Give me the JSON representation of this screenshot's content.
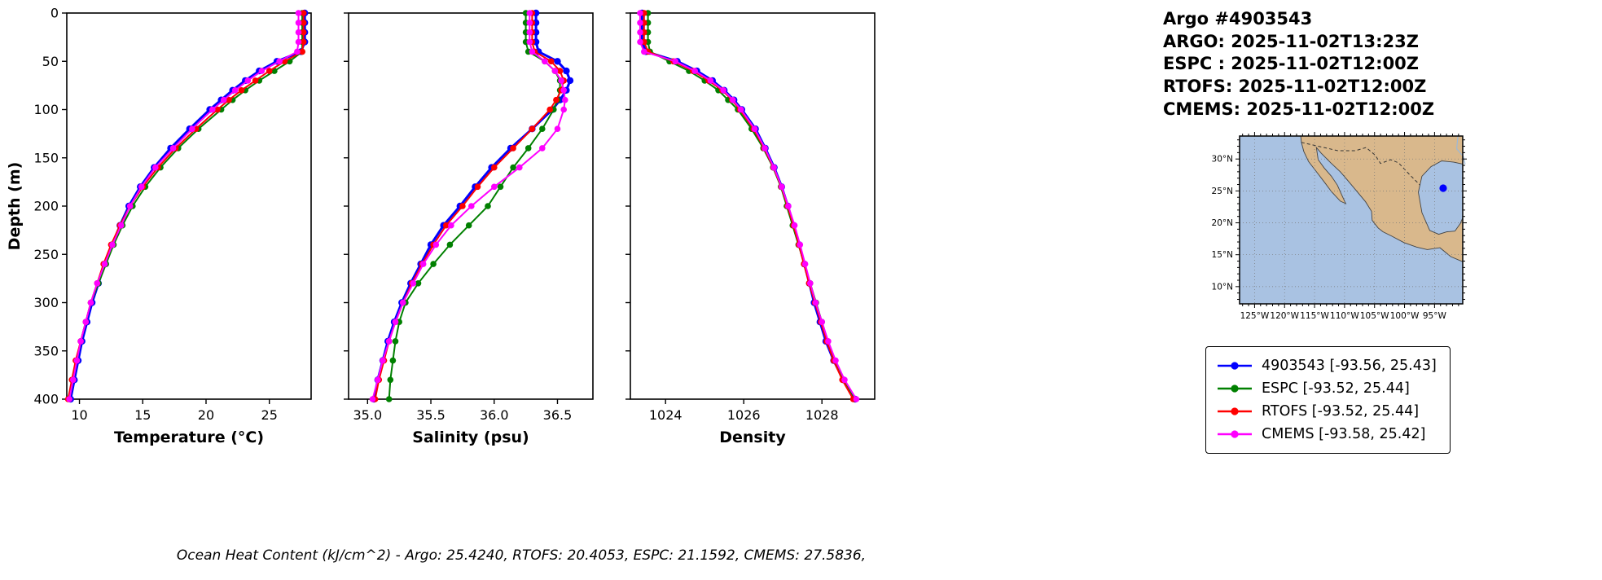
{
  "header": {
    "title": "Argo #4903543",
    "lines": [
      "ARGO: 2025-11-02T13:23Z",
      "ESPC : 2025-11-02T12:00Z",
      "RTOFS: 2025-11-02T12:00Z",
      "CMEMS: 2025-11-02T12:00Z"
    ]
  },
  "footer": {
    "caption": "Ocean Heat Content (kJ/cm^2) - Argo: 25.4240,  RTOFS: 20.4053,  ESPC: 21.1592,  CMEMS: 27.5836,"
  },
  "legend": {
    "items": [
      {
        "label": "4903543 [-93.56, 25.43]",
        "color": "#0000ff"
      },
      {
        "label": "ESPC [-93.52, 25.44]",
        "color": "#008000"
      },
      {
        "label": "RTOFS [-93.52, 25.44]",
        "color": "#ff0000"
      },
      {
        "label": "CMEMS [-93.58, 25.42]",
        "color": "#ff00ff"
      }
    ]
  },
  "map": {
    "lon_range": [
      -127.5,
      -90.3
    ],
    "lat_range": [
      7.3,
      33.6
    ],
    "lon_ticks": [
      {
        "v": -125,
        "label": "125°W"
      },
      {
        "v": -120,
        "label": "120°W"
      },
      {
        "v": -115,
        "label": "115°W"
      },
      {
        "v": -110,
        "label": "110°W"
      },
      {
        "v": -105,
        "label": "105°W"
      },
      {
        "v": -100,
        "label": "100°W"
      },
      {
        "v": -95,
        "label": "95°W"
      }
    ],
    "lat_ticks": [
      {
        "v": 30,
        "label": "30°N"
      },
      {
        "v": 25,
        "label": "25°N"
      },
      {
        "v": 20,
        "label": "20°N"
      },
      {
        "v": 15,
        "label": "15°N"
      },
      {
        "v": 10,
        "label": "10°N"
      }
    ],
    "float_lon": -93.56,
    "float_lat": 25.43,
    "marker_color": "#0000ff",
    "ocean_color": "#a9c2e2",
    "land_color": "#d9b88c"
  },
  "chart_data": [
    {
      "type": "line",
      "xlabel": "Temperature (°C)",
      "ylabel": "Depth (m)",
      "xlim": [
        9,
        28.3
      ],
      "ylim": [
        0,
        400
      ],
      "xticks": [
        10,
        15,
        20,
        25
      ],
      "xtick_labels": [
        "10",
        "15",
        "20",
        "25"
      ],
      "yticks": [
        0,
        50,
        100,
        150,
        200,
        250,
        300,
        350,
        400
      ],
      "depths": [
        0,
        10,
        20,
        30,
        40,
        50,
        60,
        70,
        80,
        90,
        100,
        120,
        140,
        160,
        180,
        200,
        220,
        240,
        260,
        280,
        300,
        320,
        340,
        360,
        380,
        400
      ],
      "series": [
        {
          "name": "4903543",
          "color": "#0000ff",
          "values": [
            27.8,
            27.8,
            27.8,
            27.8,
            27.5,
            25.6,
            24.2,
            23.1,
            22.1,
            21.2,
            20.3,
            18.7,
            17.2,
            15.9,
            14.8,
            13.9,
            13.2,
            12.6,
            12.0,
            11.5,
            11.0,
            10.6,
            10.2,
            9.9,
            9.6,
            9.3
          ]
        },
        {
          "name": "ESPC",
          "color": "#008000",
          "values": [
            27.6,
            27.6,
            27.6,
            27.6,
            27.6,
            26.6,
            25.4,
            24.2,
            23.1,
            22.1,
            21.2,
            19.4,
            17.8,
            16.4,
            15.2,
            14.2,
            13.4,
            12.7,
            12.1,
            11.5,
            10.9,
            10.5,
            10.1,
            9.8,
            9.5,
            9.2
          ]
        },
        {
          "name": "RTOFS",
          "color": "#ff0000",
          "values": [
            27.7,
            27.7,
            27.7,
            27.7,
            27.6,
            26.2,
            25.0,
            23.9,
            22.8,
            21.8,
            20.9,
            19.2,
            17.6,
            16.2,
            15.0,
            14.0,
            13.2,
            12.5,
            11.9,
            11.4,
            10.9,
            10.5,
            10.1,
            9.7,
            9.4,
            9.1
          ]
        },
        {
          "name": "CMEMS",
          "color": "#ff00ff",
          "values": [
            27.3,
            27.3,
            27.3,
            27.3,
            27.2,
            25.8,
            24.4,
            23.3,
            22.3,
            21.4,
            20.5,
            18.9,
            17.4,
            16.0,
            14.9,
            14.0,
            13.3,
            12.6,
            12.0,
            11.4,
            10.9,
            10.5,
            10.1,
            9.8,
            9.5,
            9.2
          ]
        }
      ]
    },
    {
      "type": "line",
      "xlabel": "Salinity (psu)",
      "ylabel": "",
      "xlim": [
        34.85,
        36.78
      ],
      "ylim": [
        0,
        400
      ],
      "xticks": [
        35.0,
        35.5,
        36.0,
        36.5
      ],
      "xtick_labels": [
        "35.0",
        "35.5",
        "36.0",
        "36.5"
      ],
      "yticks": [
        0,
        50,
        100,
        150,
        200,
        250,
        300,
        350,
        400
      ],
      "depths": [
        0,
        10,
        20,
        30,
        40,
        50,
        60,
        70,
        80,
        90,
        100,
        120,
        140,
        160,
        180,
        200,
        220,
        240,
        260,
        280,
        300,
        320,
        340,
        360,
        380,
        400
      ],
      "series": [
        {
          "name": "4903543",
          "color": "#0000ff",
          "values": [
            36.33,
            36.33,
            36.33,
            36.33,
            36.35,
            36.5,
            36.57,
            36.6,
            36.57,
            36.52,
            36.46,
            36.3,
            36.13,
            35.98,
            35.85,
            35.73,
            35.6,
            35.5,
            35.42,
            35.34,
            35.27,
            35.21,
            35.16,
            35.12,
            35.08,
            35.05
          ]
        },
        {
          "name": "ESPC",
          "color": "#008000",
          "values": [
            36.25,
            36.25,
            36.25,
            36.25,
            36.27,
            36.4,
            36.48,
            36.52,
            36.52,
            36.5,
            36.47,
            36.38,
            36.27,
            36.15,
            36.05,
            35.95,
            35.8,
            35.65,
            35.52,
            35.4,
            35.3,
            35.25,
            35.22,
            35.2,
            35.18,
            35.17
          ]
        },
        {
          "name": "RTOFS",
          "color": "#ff0000",
          "values": [
            36.3,
            36.3,
            36.3,
            36.3,
            36.32,
            36.45,
            36.52,
            36.55,
            36.53,
            36.49,
            36.44,
            36.3,
            36.15,
            36.0,
            35.87,
            35.75,
            35.62,
            35.52,
            35.43,
            35.35,
            35.28,
            35.22,
            35.17,
            35.13,
            35.09,
            35.06
          ]
        },
        {
          "name": "CMEMS",
          "color": "#ff00ff",
          "values": [
            36.28,
            36.28,
            36.28,
            36.28,
            36.3,
            36.4,
            36.48,
            36.53,
            36.55,
            36.56,
            36.55,
            36.5,
            36.38,
            36.2,
            36.0,
            35.82,
            35.66,
            35.54,
            35.44,
            35.36,
            35.28,
            35.22,
            35.17,
            35.12,
            35.08,
            35.04
          ]
        }
      ]
    },
    {
      "type": "line",
      "xlabel": "Density",
      "ylabel": "",
      "xlim": [
        1023.1,
        1029.35
      ],
      "ylim": [
        0,
        400
      ],
      "xticks": [
        1024,
        1026,
        1028
      ],
      "xtick_labels": [
        "1024",
        "1026",
        "1028"
      ],
      "yticks": [
        0,
        50,
        100,
        150,
        200,
        250,
        300,
        350,
        400
      ],
      "depths": [
        0,
        10,
        20,
        30,
        40,
        50,
        60,
        70,
        80,
        90,
        100,
        120,
        140,
        160,
        180,
        200,
        220,
        240,
        260,
        280,
        300,
        320,
        340,
        360,
        380,
        400
      ],
      "series": [
        {
          "name": "4903543",
          "color": "#0000ff",
          "values": [
            1023.4,
            1023.4,
            1023.4,
            1023.4,
            1023.5,
            1024.3,
            1024.8,
            1025.2,
            1025.5,
            1025.75,
            1025.95,
            1026.3,
            1026.55,
            1026.78,
            1026.97,
            1027.13,
            1027.28,
            1027.42,
            1027.55,
            1027.68,
            1027.8,
            1027.95,
            1028.1,
            1028.3,
            1028.55,
            1028.85
          ]
        },
        {
          "name": "ESPC",
          "color": "#008000",
          "values": [
            1023.55,
            1023.55,
            1023.55,
            1023.55,
            1023.6,
            1024.1,
            1024.6,
            1025.0,
            1025.35,
            1025.6,
            1025.85,
            1026.2,
            1026.5,
            1026.75,
            1026.95,
            1027.1,
            1027.25,
            1027.4,
            1027.55,
            1027.7,
            1027.85,
            1028.0,
            1028.15,
            1028.32,
            1028.55,
            1028.82
          ]
        },
        {
          "name": "RTOFS",
          "color": "#ff0000",
          "values": [
            1023.45,
            1023.45,
            1023.45,
            1023.45,
            1023.55,
            1024.2,
            1024.7,
            1025.1,
            1025.45,
            1025.7,
            1025.9,
            1026.25,
            1026.52,
            1026.76,
            1026.96,
            1027.12,
            1027.27,
            1027.41,
            1027.54,
            1027.67,
            1027.82,
            1027.97,
            1028.12,
            1028.3,
            1028.52,
            1028.8
          ]
        },
        {
          "name": "CMEMS",
          "color": "#ff00ff",
          "values": [
            1023.35,
            1023.35,
            1023.35,
            1023.35,
            1023.45,
            1024.25,
            1024.75,
            1025.15,
            1025.48,
            1025.72,
            1025.93,
            1026.28,
            1026.54,
            1026.77,
            1026.97,
            1027.14,
            1027.3,
            1027.44,
            1027.57,
            1027.7,
            1027.84,
            1028.0,
            1028.16,
            1028.35,
            1028.58,
            1028.88
          ]
        }
      ]
    }
  ]
}
